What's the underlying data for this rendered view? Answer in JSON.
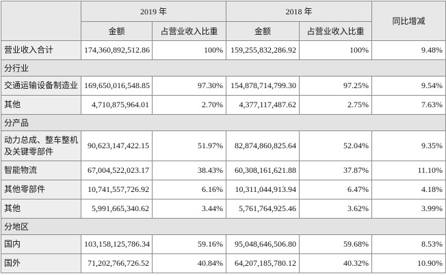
{
  "table": {
    "years": [
      "2019 年",
      "2018 年"
    ],
    "sub_headers": [
      "金额",
      "占营业收入比重",
      "金额",
      "占营业收入比重"
    ],
    "change": "同比增减",
    "rows": [
      {
        "label": "营业收入合计",
        "cells": [
          "174,360,892,512.86",
          "100%",
          "159,255,832,286.92",
          "100%",
          "9.48%"
        ]
      },
      {
        "section": "分行业"
      },
      {
        "label": "交通运输设备制造业",
        "cells": [
          "169,650,016,548.85",
          "97.30%",
          "154,878,714,799.30",
          "97.25%",
          "9.54%"
        ]
      },
      {
        "label": "其他",
        "cells": [
          "4,710,875,964.01",
          "2.70%",
          "4,377,117,487.62",
          "2.75%",
          "7.63%"
        ]
      },
      {
        "section": "分产品"
      },
      {
        "label": "动力总成、整车整机及关键零部件",
        "cells": [
          "90,623,147,422.15",
          "51.97%",
          "82,874,860,825.64",
          "52.04%",
          "9.35%"
        ]
      },
      {
        "label": "智能物流",
        "cells": [
          "67,004,522,023.17",
          "38.43%",
          "60,308,161,621.88",
          "37.87%",
          "11.10%"
        ]
      },
      {
        "label": "其他零部件",
        "cells": [
          "10,741,557,726.92",
          "6.16%",
          "10,311,044,913.94",
          "6.47%",
          "4.18%"
        ]
      },
      {
        "label": "其他",
        "cells": [
          "5,991,665,340.62",
          "3.44%",
          "5,761,764,925.46",
          "3.62%",
          "3.99%"
        ]
      },
      {
        "section": "分地区"
      },
      {
        "label": "国内",
        "cells": [
          "103,158,125,786.34",
          "59.16%",
          "95,048,646,506.80",
          "59.68%",
          "8.53%"
        ]
      },
      {
        "label": "国外",
        "cells": [
          "71,202,766,726.52",
          "40.84%",
          "64,207,185,780.12",
          "40.32%",
          "10.90%"
        ]
      }
    ]
  }
}
